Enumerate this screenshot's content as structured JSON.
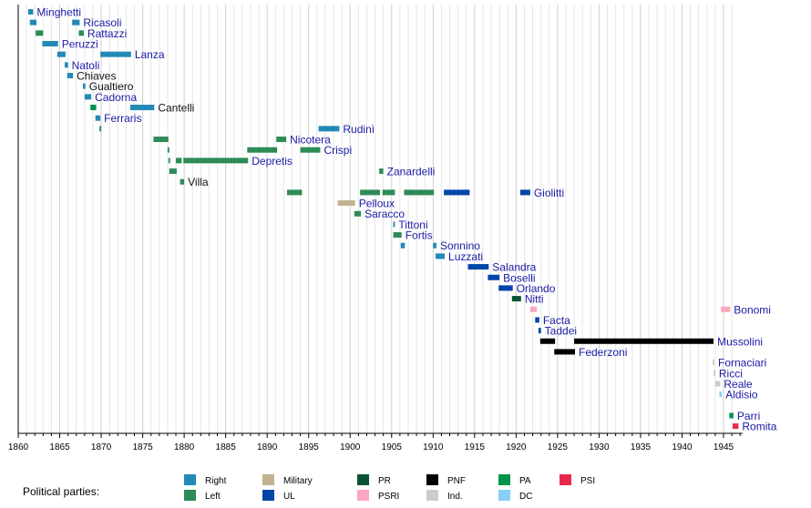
{
  "chart_data": {
    "type": "timeline",
    "xlim": [
      1860,
      1947
    ],
    "x_ticks": [
      1860,
      1865,
      1870,
      1875,
      1880,
      1885,
      1890,
      1895,
      1900,
      1905,
      1910,
      1915,
      1920,
      1925,
      1930,
      1935,
      1940,
      1945
    ],
    "grid": true,
    "legend": {
      "title": "Political parties:",
      "position": "bottom",
      "items": [
        {
          "key": "Right",
          "label": "Right",
          "color": "#2389b7"
        },
        {
          "key": "Left",
          "label": "Left",
          "color": "#2e8b57"
        },
        {
          "key": "Military",
          "label": "Military",
          "color": "#c4b190"
        },
        {
          "key": "UL",
          "label": "UL",
          "color": "#0045aa"
        },
        {
          "key": "PR",
          "label": "PR",
          "color": "#0b5335"
        },
        {
          "key": "PSRI",
          "label": "PSRI",
          "color": "#f9a8c0"
        },
        {
          "key": "PNF",
          "label": "PNF",
          "color": "#000000"
        },
        {
          "key": "Ind",
          "label": "Ind.",
          "color": "#cccccc"
        },
        {
          "key": "PA",
          "label": "PA",
          "color": "#00944b"
        },
        {
          "key": "DC",
          "label": "DC",
          "color": "#87cefa"
        },
        {
          "key": "PSI",
          "label": "PSI",
          "color": "#e8284c"
        }
      ]
    },
    "rows": [
      {
        "name": "Minghetti",
        "link": true,
        "bars": [
          [
            1861.2,
            1861.8,
            "Right"
          ]
        ]
      },
      {
        "name": "Ricasoli",
        "link": true,
        "bars": [
          [
            1861.4,
            1862.2,
            "Right"
          ],
          [
            1866.5,
            1867.4,
            "Right"
          ]
        ]
      },
      {
        "name": "Rattazzi",
        "link": true,
        "bars": [
          [
            1862.1,
            1863.0,
            "Left"
          ],
          [
            1867.3,
            1867.9,
            "Left"
          ]
        ]
      },
      {
        "name": "Peruzzi",
        "link": true,
        "bars": [
          [
            1862.9,
            1864.8,
            "Right"
          ]
        ]
      },
      {
        "name": "Lanza",
        "link": true,
        "bars": [
          [
            1864.7,
            1865.7,
            "Right"
          ],
          [
            1869.9,
            1873.6,
            "Right"
          ]
        ]
      },
      {
        "name": "Natoli",
        "link": true,
        "bars": [
          [
            1865.6,
            1866.0,
            "Right"
          ]
        ]
      },
      {
        "name": "Chiaves",
        "link": false,
        "bars": [
          [
            1865.9,
            1866.6,
            "Right"
          ]
        ]
      },
      {
        "name": "Gualtiero",
        "link": false,
        "bars": [
          [
            1867.8,
            1868.1,
            "Right"
          ]
        ]
      },
      {
        "name": "Cadorna",
        "link": true,
        "bars": [
          [
            1868.0,
            1868.8,
            "Right"
          ]
        ]
      },
      {
        "name": "Cantelli",
        "link": false,
        "bars": [
          [
            1868.7,
            1869.4,
            "PA"
          ],
          [
            1873.5,
            1876.4,
            "Right"
          ]
        ]
      },
      {
        "name": "Ferraris",
        "link": true,
        "bars": [
          [
            1869.3,
            1869.9,
            "Right"
          ]
        ]
      },
      {
        "name": "Rudinì",
        "link": true,
        "bars": [
          [
            1869.8,
            1870.0,
            "Left"
          ],
          [
            1896.2,
            1898.7,
            "Right"
          ]
        ]
      },
      {
        "name": "Nicotera",
        "link": true,
        "bars": [
          [
            1876.3,
            1878.1,
            "Left"
          ],
          [
            1891.1,
            1892.3,
            "Left"
          ]
        ]
      },
      {
        "name": "Crispi",
        "link": true,
        "bars": [
          [
            1878.0,
            1878.2,
            "Left"
          ],
          [
            1887.6,
            1891.2,
            "Left"
          ],
          [
            1894.0,
            1896.4,
            "Left"
          ]
        ]
      },
      {
        "name": "Depretis",
        "link": true,
        "bars": [
          [
            1878.1,
            1878.3,
            "Left"
          ],
          [
            1879.0,
            1879.7,
            "Left"
          ],
          [
            1879.9,
            1887.7,
            "Left"
          ]
        ]
      },
      {
        "name": "Zanardelli",
        "link": true,
        "bars": [
          [
            1878.2,
            1879.1,
            "Left"
          ],
          [
            1903.5,
            1904.0,
            "Left"
          ]
        ]
      },
      {
        "name": "Villa",
        "link": false,
        "bars": [
          [
            1879.5,
            1880.0,
            "Left"
          ]
        ]
      },
      {
        "name": "Giolitti",
        "link": true,
        "bars": [
          [
            1892.4,
            1894.2,
            "Left"
          ],
          [
            1901.2,
            1903.6,
            "Left"
          ],
          [
            1903.9,
            1905.4,
            "Left"
          ],
          [
            1906.5,
            1910.1,
            "Left"
          ],
          [
            1911.3,
            1914.4,
            "UL"
          ],
          [
            1920.5,
            1921.7,
            "UL"
          ]
        ]
      },
      {
        "name": "Pelloux",
        "link": true,
        "bars": [
          [
            1898.5,
            1900.6,
            "Military"
          ]
        ]
      },
      {
        "name": "Saracco",
        "link": true,
        "bars": [
          [
            1900.5,
            1901.3,
            "Left"
          ]
        ]
      },
      {
        "name": "Tittoni",
        "link": true,
        "bars": [
          [
            1905.2,
            1905.4,
            "Right"
          ]
        ]
      },
      {
        "name": "Fortis",
        "link": true,
        "bars": [
          [
            1905.2,
            1906.2,
            "Left"
          ]
        ]
      },
      {
        "name": "Sonnino",
        "link": true,
        "bars": [
          [
            1906.1,
            1906.6,
            "Right"
          ],
          [
            1910.0,
            1910.4,
            "Right"
          ]
        ]
      },
      {
        "name": "Luzzati",
        "link": true,
        "bars": [
          [
            1910.3,
            1911.4,
            "Right"
          ]
        ]
      },
      {
        "name": "Salandra",
        "link": true,
        "bars": [
          [
            1914.2,
            1916.7,
            "UL"
          ]
        ]
      },
      {
        "name": "Boselli",
        "link": true,
        "bars": [
          [
            1916.6,
            1918.0,
            "UL"
          ]
        ]
      },
      {
        "name": "Orlando",
        "link": true,
        "bars": [
          [
            1917.9,
            1919.6,
            "UL"
          ]
        ]
      },
      {
        "name": "Nitti",
        "link": true,
        "bars": [
          [
            1919.5,
            1920.6,
            "PR"
          ]
        ]
      },
      {
        "name": "Bonomi",
        "link": true,
        "bars": [
          [
            1921.7,
            1922.5,
            "PSRI"
          ],
          [
            1944.7,
            1945.8,
            "PSRI"
          ]
        ]
      },
      {
        "name": "Facta",
        "link": true,
        "bars": [
          [
            1922.3,
            1922.8,
            "UL"
          ]
        ]
      },
      {
        "name": "Taddei",
        "link": true,
        "bars": [
          [
            1922.7,
            1923.0,
            "UL"
          ]
        ]
      },
      {
        "name": "Mussolini",
        "link": true,
        "bars": [
          [
            1922.9,
            1924.7,
            "PNF"
          ],
          [
            1927.0,
            1943.8,
            "PNF"
          ]
        ]
      },
      {
        "name": "Federzoni",
        "link": true,
        "bars": [
          [
            1924.6,
            1927.1,
            "PNF"
          ]
        ]
      },
      {
        "name": "Fornaciari",
        "link": true,
        "bars": [
          [
            1943.7,
            1943.9,
            "Ind"
          ]
        ]
      },
      {
        "name": "Ricci",
        "link": true,
        "bars": [
          [
            1943.8,
            1944.0,
            "Ind"
          ]
        ]
      },
      {
        "name": "Reale",
        "link": true,
        "bars": [
          [
            1944.0,
            1944.6,
            "Ind"
          ]
        ]
      },
      {
        "name": "Aldisio",
        "link": true,
        "bars": [
          [
            1944.5,
            1944.8,
            "DC"
          ]
        ]
      },
      {
        "name": "",
        "link": false,
        "bars": []
      },
      {
        "name": "Parri",
        "link": true,
        "bars": [
          [
            1945.7,
            1946.2,
            "PA"
          ]
        ]
      },
      {
        "name": "Romita",
        "link": true,
        "bars": [
          [
            1946.1,
            1946.8,
            "PSI"
          ]
        ]
      }
    ]
  }
}
